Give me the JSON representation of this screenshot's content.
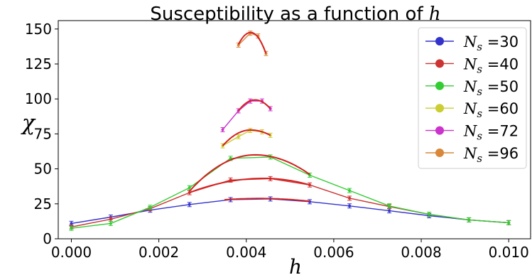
{
  "chart_data": {
    "type": "line",
    "title": "Susceptibility as a function of ",
    "title_var": "h",
    "xlabel": "h",
    "ylabel": "χ",
    "xlim": [
      -0.0003,
      0.0105
    ],
    "ylim": [
      0,
      156
    ],
    "xticks": [
      0.0,
      0.002,
      0.004,
      0.006,
      0.008,
      0.01
    ],
    "xtick_labels": [
      "0.000",
      "0.002",
      "0.004",
      "0.006",
      "0.008",
      "0.010"
    ],
    "yticks": [
      0,
      25,
      50,
      75,
      100,
      125,
      150
    ],
    "ytick_labels": [
      "0",
      "25",
      "50",
      "75",
      "100",
      "125",
      "150"
    ],
    "grid": false,
    "legend_position": "top-right",
    "series": [
      {
        "name": "N_s =30",
        "legend_var": "N",
        "legend_sub": "s",
        "legend_rest": " =30",
        "color": "#3333cc",
        "x": [
          0.0,
          0.0009,
          0.0018,
          0.0027,
          0.00364,
          0.00455,
          0.00545,
          0.00636,
          0.00727,
          0.00818,
          0.00909,
          0.01
        ],
        "y": [
          11.0,
          15.5,
          20.5,
          24.5,
          28.0,
          28.5,
          26.5,
          23.5,
          20.0,
          16.5,
          13.5,
          11.5
        ],
        "fit": {
          "x": [
            0.0035,
            0.00545
          ],
          "peak_x": 0.0043,
          "peak_y": 28.8,
          "end_y": [
            27.9,
            26.8
          ]
        }
      },
      {
        "name": "N_s =40",
        "legend_var": "N",
        "legend_sub": "s",
        "legend_rest": " =40",
        "color": "#cc3333",
        "x": [
          0.0,
          0.0009,
          0.0018,
          0.0027,
          0.00364,
          0.00455,
          0.00545,
          0.00636,
          0.00727,
          0.00818,
          0.00909,
          0.01
        ],
        "y": [
          8.5,
          14.0,
          21.5,
          33.0,
          42.0,
          43.0,
          38.5,
          29.0,
          23.0,
          17.5,
          13.5,
          11.5
        ],
        "fit": {
          "x": [
            0.0027,
            0.00545
          ],
          "peak_x": 0.0044,
          "peak_y": 43.2,
          "end_y": [
            33.0,
            38.5
          ]
        }
      },
      {
        "name": "N_s =50",
        "legend_var": "N",
        "legend_sub": "s",
        "legend_rest": " =50",
        "color": "#33cc33",
        "x": [
          0.0,
          0.0009,
          0.0018,
          0.0027,
          0.00364,
          0.00455,
          0.00545,
          0.00636,
          0.00727,
          0.00818,
          0.00909,
          0.01
        ],
        "y": [
          7.5,
          11.0,
          22.5,
          36.5,
          57.5,
          58.5,
          45.5,
          34.5,
          23.5,
          17.5,
          13.5,
          11.5
        ],
        "fit": {
          "x": [
            0.0027,
            0.00545
          ],
          "peak_x": 0.0042,
          "peak_y": 60.0,
          "end_y": [
            34.0,
            46.0
          ]
        }
      },
      {
        "name": "N_s =60",
        "legend_var": "N",
        "legend_sub": "s",
        "legend_rest": " =60",
        "color": "#cccc33",
        "x": [
          0.00346,
          0.00382,
          0.00409,
          0.00436,
          0.00455
        ],
        "y": [
          66.5,
          73.0,
          77.5,
          76.5,
          74.0
        ],
        "fit": {
          "x": [
            0.00346,
            0.00455
          ],
          "peak_x": 0.0041,
          "peak_y": 77.8,
          "end_y": [
            66.5,
            74.0
          ]
        }
      },
      {
        "name": "N_s =72",
        "legend_var": "N",
        "legend_sub": "s",
        "legend_rest": " =72",
        "color": "#cc33cc",
        "x": [
          0.00346,
          0.00382,
          0.00409,
          0.00436,
          0.00455
        ],
        "y": [
          78.0,
          91.5,
          98.5,
          98.5,
          93.0
        ],
        "fit": {
          "x": [
            0.00382,
            0.00455
          ],
          "peak_x": 0.0042,
          "peak_y": 99.3,
          "end_y": [
            91.5,
            93.0
          ]
        }
      },
      {
        "name": "N_s =96",
        "legend_var": "N",
        "legend_sub": "s",
        "legend_rest": " =96",
        "color": "#d9883a",
        "x": [
          0.00382,
          0.00409,
          0.00427,
          0.00445
        ],
        "y": [
          138.5,
          147.0,
          145.0,
          132.5
        ],
        "fit": {
          "x": [
            0.00382,
            0.00445
          ],
          "peak_x": 0.0041,
          "peak_y": 147.5,
          "end_y": [
            139.0,
            132.5
          ]
        }
      }
    ]
  }
}
